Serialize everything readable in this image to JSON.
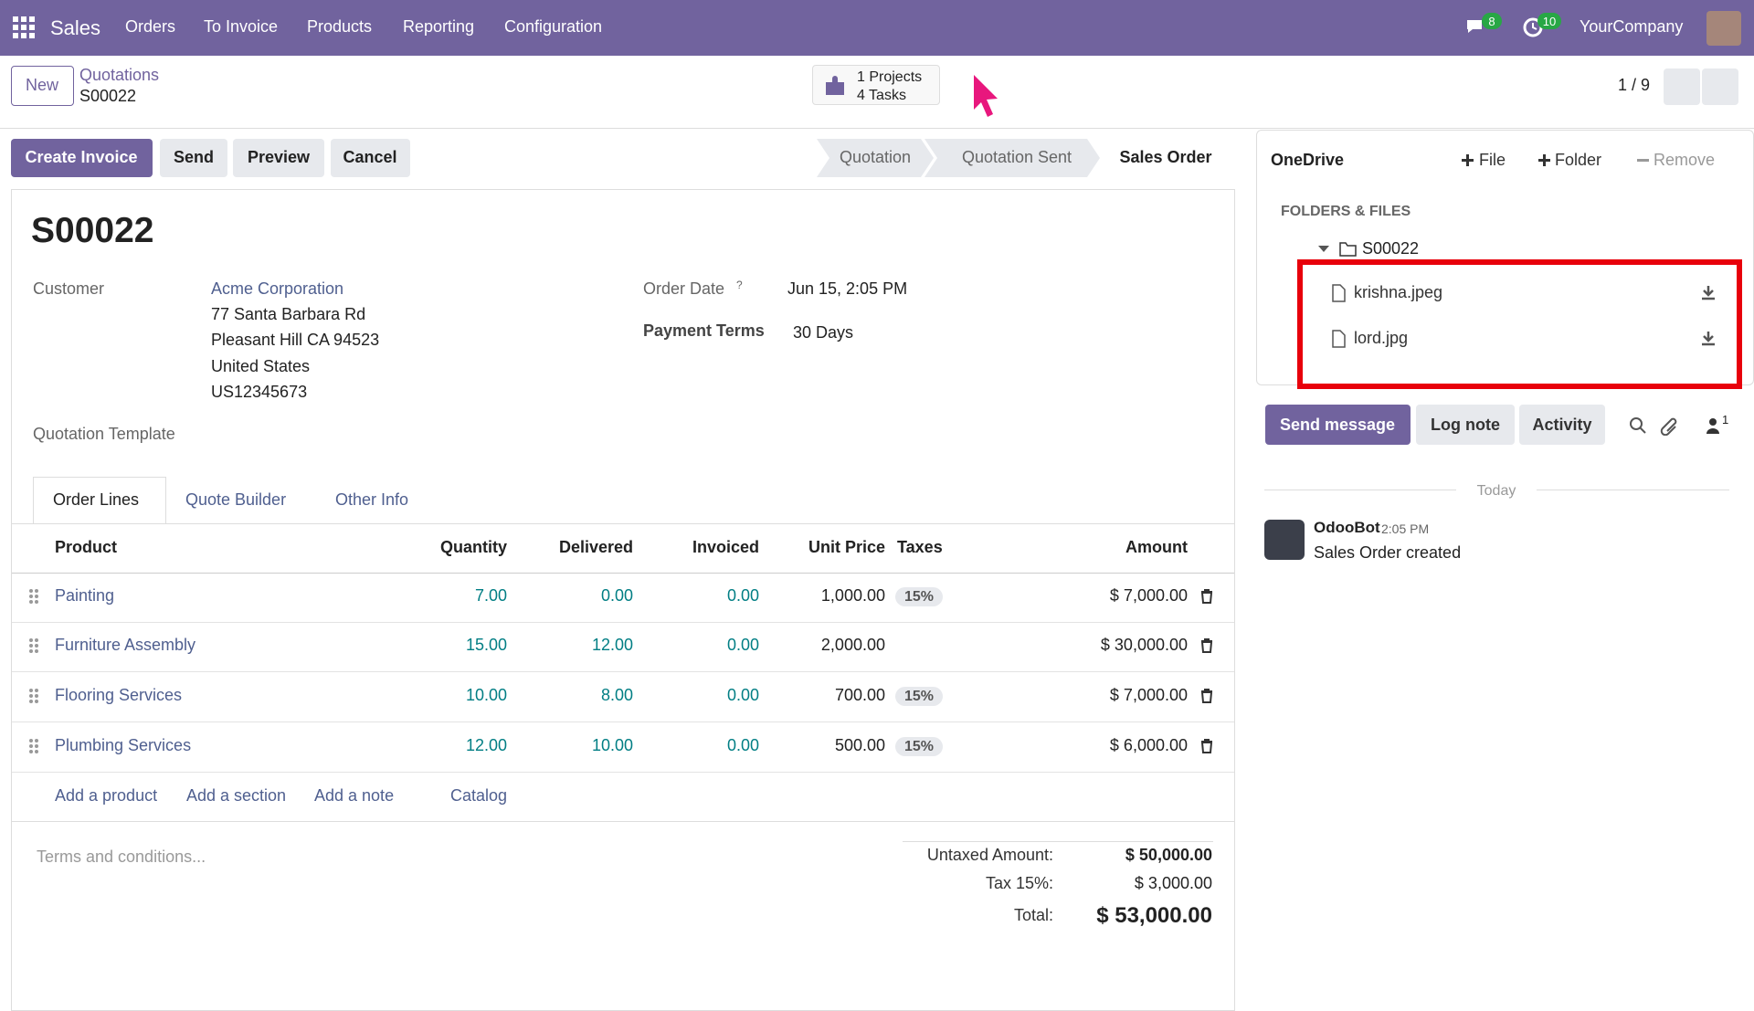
{
  "navbar": {
    "app": "Sales",
    "menu": [
      "Orders",
      "To Invoice",
      "Products",
      "Reporting",
      "Configuration"
    ],
    "messages_badge": "8",
    "activity_badge": "10",
    "company": "YourCompany"
  },
  "control_panel": {
    "new_button": "New",
    "breadcrumb": "Quotations",
    "record": "S00022",
    "projects": "1 Projects",
    "tasks": "4 Tasks",
    "pager": "1 / 9"
  },
  "actions": [
    "Create Invoice",
    "Send",
    "Preview",
    "Cancel"
  ],
  "statusbar": [
    "Quotation",
    "Quotation Sent",
    "Sales Order"
  ],
  "form": {
    "name": "S00022",
    "customer_label": "Customer",
    "customer": "Acme Corporation",
    "address": [
      "77 Santa Barbara Rd",
      "Pleasant Hill CA 94523",
      "United States",
      "US12345673"
    ],
    "order_date_label": "Order Date",
    "order_date_help": "?",
    "order_date": "Jun 15, 2:05 PM",
    "payment_terms_label": "Payment Terms",
    "payment_terms": "30 Days",
    "template_label": "Quotation Template"
  },
  "tabs": [
    "Order Lines",
    "Quote Builder",
    "Other Info"
  ],
  "table": {
    "columns": [
      "Product",
      "Quantity",
      "Delivered",
      "Invoiced",
      "Unit Price",
      "Taxes",
      "Amount"
    ],
    "rows": [
      {
        "product": "Painting",
        "quantity": "7.00",
        "delivered": "0.00",
        "invoiced": "0.00",
        "unit_price": "1,000.00",
        "taxes": "15%",
        "amount": "$ 7,000.00"
      },
      {
        "product": "Furniture Assembly",
        "quantity": "15.00",
        "delivered": "12.00",
        "invoiced": "0.00",
        "unit_price": "2,000.00",
        "amount": "$ 30,000.00"
      },
      {
        "product": "Flooring Services",
        "quantity": "10.00",
        "delivered": "8.00",
        "invoiced": "0.00",
        "unit_price": "700.00",
        "taxes": "15%",
        "amount": "$ 7,000.00"
      },
      {
        "product": "Plumbing Services",
        "quantity": "12.00",
        "delivered": "10.00",
        "invoiced": "0.00",
        "unit_price": "500.00",
        "taxes": "15%",
        "amount": "$ 6,000.00"
      }
    ],
    "links": [
      "Add a product",
      "Add a section",
      "Add a note",
      "Catalog"
    ]
  },
  "notes_placeholder": "Terms and conditions...",
  "totals": [
    {
      "label": "Untaxed Amount:",
      "value": "$ 50,000.00"
    },
    {
      "label": "Tax 15%:",
      "value": "$ 3,000.00"
    },
    {
      "label": "Total:",
      "value": "$ 53,000.00"
    }
  ],
  "onedrive": {
    "title": "OneDrive",
    "buttons": [
      "File",
      "Folder",
      "Remove"
    ],
    "section": "FOLDERS & FILES",
    "folder": "S00022",
    "files": [
      "krishna.jpeg",
      "lord.jpg"
    ]
  },
  "chatter": {
    "buttons": [
      "Send message",
      "Log note",
      "Activity"
    ],
    "followers": "1",
    "date_separator": "Today",
    "messages": [
      {
        "author": "OdooBot",
        "time": "2:05 PM",
        "body": "Sales Order created"
      }
    ]
  }
}
